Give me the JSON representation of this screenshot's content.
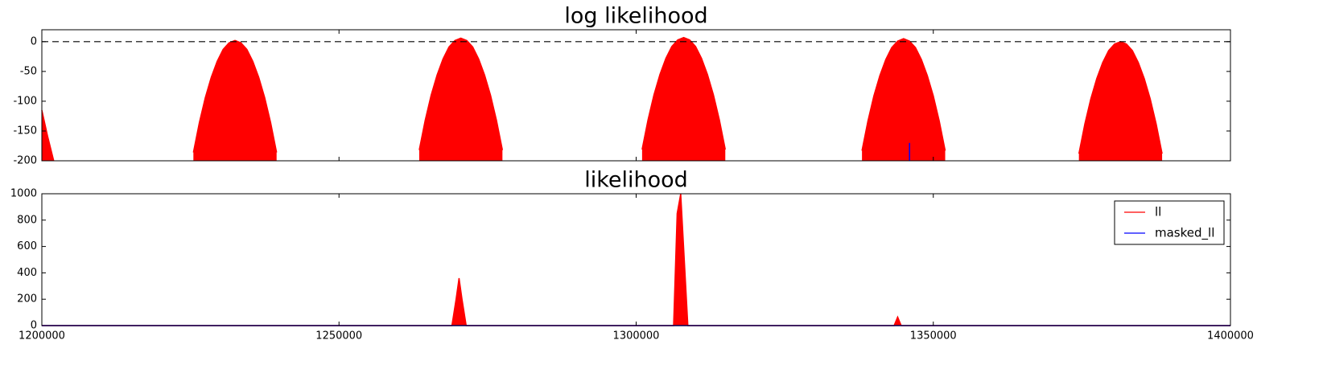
{
  "chart_data": [
    {
      "type": "area",
      "title": "log likelihood",
      "xlim": [
        1200000,
        1400000
      ],
      "xticks": [
        1200000,
        1250000,
        1300000,
        1350000,
        1400000
      ],
      "xticklabels": false,
      "ylim": [
        -200,
        20
      ],
      "yticks": [
        -200,
        -150,
        -100,
        -50,
        0
      ],
      "hline": 0,
      "series": [
        {
          "name": "ll",
          "color": "#ff0000",
          "fill": true,
          "x": [
            1200000,
            1201000,
            1202000,
            1213000,
            1225500,
            1226500,
            1227500,
            1228500,
            1229500,
            1230500,
            1231500,
            1232500,
            1233500,
            1234500,
            1235500,
            1236500,
            1237500,
            1238500,
            1239500,
            1251000,
            1263500,
            1264500,
            1265500,
            1266500,
            1267500,
            1268500,
            1269500,
            1270500,
            1271500,
            1272500,
            1273500,
            1274500,
            1275500,
            1276500,
            1277500,
            1289000,
            1301000,
            1302000,
            1303000,
            1304000,
            1305000,
            1306000,
            1307000,
            1308000,
            1309000,
            1310000,
            1311000,
            1312000,
            1313000,
            1314000,
            1315000,
            1326500,
            1338000,
            1339000,
            1340000,
            1341000,
            1342000,
            1343000,
            1344000,
            1345000,
            1346000,
            1347000,
            1348000,
            1349000,
            1350000,
            1351000,
            1352000,
            1363000,
            1374500,
            1375500,
            1376500,
            1377500,
            1378500,
            1379500,
            1380500,
            1381500,
            1382500,
            1383500,
            1384500,
            1385500,
            1386500,
            1387500,
            1388500
          ],
          "values": [
            -115,
            -160,
            -200,
            null,
            -186,
            -136,
            -94,
            -60,
            -33,
            -13,
            -2,
            2,
            -2,
            -13,
            -33,
            -60,
            -94,
            -136,
            -186,
            null,
            -182,
            -132,
            -90,
            -56,
            -29,
            -9,
            2,
            6,
            2,
            -9,
            -29,
            -56,
            -90,
            -132,
            -182,
            null,
            -181,
            -131,
            -89,
            -55,
            -28,
            -8,
            3,
            7,
            3,
            -8,
            -28,
            -55,
            -89,
            -131,
            -181,
            null,
            -183,
            -133,
            -91,
            -57,
            -30,
            -10,
            1,
            5,
            1,
            -10,
            -30,
            -57,
            -91,
            -133,
            -183,
            null,
            -188,
            -138,
            -96,
            -62,
            -35,
            -15,
            -4,
            0,
            -4,
            -15,
            -35,
            -62,
            -96,
            -138,
            -188
          ]
        },
        {
          "name": "masked_ll",
          "color": "#0000ff",
          "fill": false,
          "x": [
            1346000,
            1346000
          ],
          "values": [
            -200,
            -170
          ]
        }
      ]
    },
    {
      "type": "area",
      "title": "likelihood",
      "xlim": [
        1200000,
        1400000
      ],
      "xticks": [
        1200000,
        1250000,
        1300000,
        1350000,
        1400000
      ],
      "xticklabels": true,
      "ylim": [
        0,
        1000
      ],
      "yticks": [
        0,
        200,
        400,
        600,
        800,
        1000
      ],
      "legend": "upper right",
      "series": [
        {
          "name": "ll",
          "color": "#ff0000",
          "fill": true,
          "x": [
            1200000,
            1269000,
            1269700,
            1270200,
            1270700,
            1271400,
            1306300,
            1306900,
            1307500,
            1308100,
            1308700,
            1343400,
            1344000,
            1344600,
            1400000
          ],
          "values": [
            0,
            0,
            200,
            360,
            200,
            0,
            0,
            850,
            1000,
            500,
            0,
            0,
            65,
            0,
            0
          ]
        },
        {
          "name": "masked_ll",
          "color": "#0000ff",
          "fill": false,
          "x": [
            1200000,
            1400000
          ],
          "values": [
            0,
            0
          ]
        }
      ]
    }
  ]
}
